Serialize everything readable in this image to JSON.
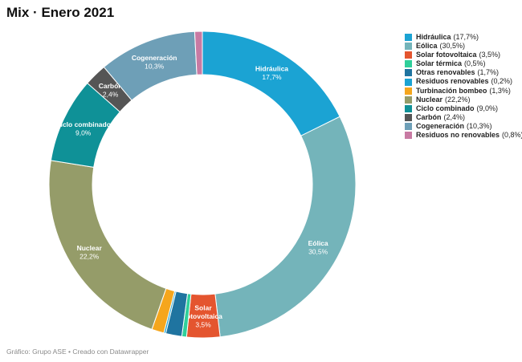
{
  "title": "Mix · Enero 2021",
  "footer": "Gráfico: Grupo ASE • Creado con Datawrapper",
  "chart_data": {
    "type": "donut",
    "title": "Mix · Enero 2021",
    "legend_position": "right",
    "slices": [
      {
        "name": "Hidráulica",
        "value": 17.7,
        "display": "17,7%",
        "color": "#1ba3d3",
        "label_lines": [
          "Hidráulica"
        ],
        "label_value": "17,7%"
      },
      {
        "name": "Eólica",
        "value": 30.5,
        "display": "30,5%",
        "color": "#74b4ba",
        "label_lines": [
          "Eólica"
        ],
        "label_value": "30,5%"
      },
      {
        "name": "Solar fotovoltaica",
        "value": 3.5,
        "display": "3,5%",
        "color": "#e4552f",
        "label_lines": [
          "Solar",
          "fotovoltaica"
        ],
        "label_value": "3,5%"
      },
      {
        "name": "Solar térmica",
        "value": 0.5,
        "display": "0,5%",
        "color": "#2fcf9a",
        "label_lines": [],
        "label_value": ""
      },
      {
        "name": "Otras renovables",
        "value": 1.7,
        "display": "1,7%",
        "color": "#1f74a0",
        "label_lines": [],
        "label_value": ""
      },
      {
        "name": "Residuos renovables",
        "value": 0.2,
        "display": "0,2%",
        "color": "#1ba3d3",
        "label_lines": [],
        "label_value": ""
      },
      {
        "name": "Turbinación bombeo",
        "value": 1.3,
        "display": "1,3%",
        "color": "#f5a61d",
        "label_lines": [],
        "label_value": ""
      },
      {
        "name": "Nuclear",
        "value": 22.2,
        "display": "22,2%",
        "color": "#959c69",
        "label_lines": [
          "Nuclear"
        ],
        "label_value": "22,2%"
      },
      {
        "name": "Ciclo combinado",
        "value": 9.0,
        "display": "9,0%",
        "color": "#0f9197",
        "label_lines": [
          "Ciclo combinado"
        ],
        "label_value": "9,0%"
      },
      {
        "name": "Carbón",
        "value": 2.4,
        "display": "2,4%",
        "color": "#555555",
        "label_lines": [
          "Carbón"
        ],
        "label_value": "2,4%"
      },
      {
        "name": "Cogeneración",
        "value": 10.3,
        "display": "10,3%",
        "color": "#6e9fb7",
        "label_lines": [
          "Cogeneración"
        ],
        "label_value": "10,3%"
      },
      {
        "name": "Residuos no renovables",
        "value": 0.8,
        "display": "0,8%",
        "color": "#c87aa3",
        "label_lines": [],
        "label_value": ""
      }
    ]
  }
}
